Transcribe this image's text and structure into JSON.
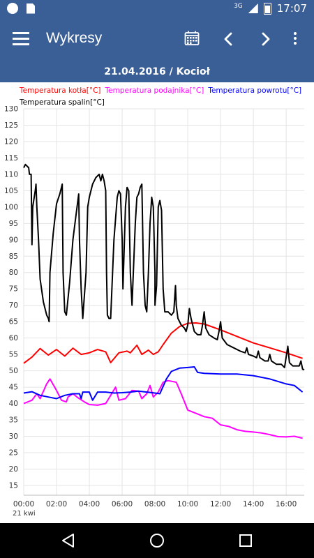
{
  "statusbar": {
    "network": "3G",
    "time": "17:07"
  },
  "toolbar": {
    "title": "Wykresy",
    "icons": [
      "menu-icon",
      "calendar-icon",
      "chevron-left-icon",
      "chevron-right-icon",
      "more-vert-icon"
    ]
  },
  "subtitle": "21.04.2016 / Kocioł",
  "chart_data": {
    "type": "line",
    "title": "",
    "xlabel": "",
    "ylabel": "",
    "x_ticks": [
      "00:00",
      "02:00",
      "04:00",
      "06:00",
      "08:00",
      "10:00",
      "12:00",
      "14:00",
      "16:00"
    ],
    "x_sub_label": "21 kwi",
    "y_ticks": [
      15,
      20,
      25,
      30,
      35,
      40,
      45,
      50,
      55,
      60,
      65,
      70,
      75,
      80,
      85,
      90,
      95,
      100,
      105,
      110,
      115,
      120,
      125,
      130
    ],
    "ylim": [
      12,
      130
    ],
    "xlim": [
      0,
      17.1
    ],
    "grid": true,
    "legend_position": "top",
    "series": [
      {
        "name": "Temperatura kotła[°C]",
        "color": "#ff0000",
        "points": [
          [
            0,
            52.3
          ],
          [
            0.5,
            54.2
          ],
          [
            1,
            56.8
          ],
          [
            1.5,
            54.8
          ],
          [
            2,
            56.5
          ],
          [
            2.5,
            54.5
          ],
          [
            3,
            56.9
          ],
          [
            3.5,
            55
          ],
          [
            4,
            55.5
          ],
          [
            4.5,
            56.5
          ],
          [
            5,
            55.8
          ],
          [
            5.3,
            52.5
          ],
          [
            5.8,
            55.5
          ],
          [
            6.3,
            56
          ],
          [
            6.5,
            55.5
          ],
          [
            6.9,
            57.8
          ],
          [
            7.2,
            55
          ],
          [
            7.6,
            56.3
          ],
          [
            7.9,
            55
          ],
          [
            8.2,
            55.8
          ],
          [
            8.5,
            58
          ],
          [
            9,
            61.5
          ],
          [
            9.5,
            63.5
          ],
          [
            10,
            64.5
          ],
          [
            10.5,
            64.6
          ],
          [
            11,
            64.3
          ],
          [
            12,
            62.5
          ],
          [
            13,
            60.5
          ],
          [
            14,
            58.5
          ],
          [
            15,
            57
          ],
          [
            16,
            55.5
          ],
          [
            17,
            53.8
          ]
        ]
      },
      {
        "name": "Temperatura podajnika[°C]",
        "color": "#ff00ff",
        "points": [
          [
            0,
            40
          ],
          [
            0.5,
            41
          ],
          [
            0.8,
            43
          ],
          [
            1,
            41.5
          ],
          [
            1.4,
            46
          ],
          [
            1.6,
            47.5
          ],
          [
            2,
            44
          ],
          [
            2.3,
            41
          ],
          [
            2.6,
            40.5
          ],
          [
            2.7,
            42
          ],
          [
            3,
            43
          ],
          [
            3.3,
            41.8
          ],
          [
            3.7,
            40.5
          ],
          [
            4,
            39.7
          ],
          [
            4.5,
            39.5
          ],
          [
            5,
            40
          ],
          [
            5.3,
            42.5
          ],
          [
            5.6,
            45
          ],
          [
            5.8,
            41
          ],
          [
            6.2,
            41.5
          ],
          [
            6.6,
            44
          ],
          [
            7,
            43.8
          ],
          [
            7.2,
            41.5
          ],
          [
            7.5,
            43
          ],
          [
            7.7,
            45.5
          ],
          [
            7.9,
            42
          ],
          [
            8.2,
            43.5
          ],
          [
            8.5,
            46.5
          ],
          [
            8.8,
            47
          ],
          [
            9.3,
            46.5
          ],
          [
            9.6,
            43
          ],
          [
            10,
            38
          ],
          [
            10.5,
            37
          ],
          [
            11,
            36
          ],
          [
            11.5,
            35.5
          ],
          [
            12,
            33.5
          ],
          [
            12.5,
            33
          ],
          [
            13,
            32
          ],
          [
            13.5,
            31.5
          ],
          [
            14,
            31.3
          ],
          [
            14.5,
            31
          ],
          [
            15,
            30.5
          ],
          [
            15.5,
            29.9
          ],
          [
            16,
            29.8
          ],
          [
            16.5,
            30
          ],
          [
            17,
            29.4
          ]
        ]
      },
      {
        "name": "Temperatura powrotu[°C]",
        "color": "#0000ff",
        "points": [
          [
            0,
            43.2
          ],
          [
            0.5,
            43.6
          ],
          [
            1,
            42.5
          ],
          [
            1.5,
            42
          ],
          [
            2,
            41.5
          ],
          [
            2.5,
            42.5
          ],
          [
            3,
            43
          ],
          [
            3.4,
            43
          ],
          [
            3.5,
            41.5
          ],
          [
            3.6,
            43.5
          ],
          [
            4,
            43.5
          ],
          [
            4.2,
            41
          ],
          [
            4.5,
            43.5
          ],
          [
            5,
            43.5
          ],
          [
            5.5,
            43.2
          ],
          [
            6,
            43.3
          ],
          [
            6.5,
            43.5
          ],
          [
            7,
            43.8
          ],
          [
            7.5,
            43.5
          ],
          [
            8,
            43.2
          ],
          [
            8.3,
            43
          ],
          [
            8.7,
            47.5
          ],
          [
            9,
            49.8
          ],
          [
            9.5,
            50.8
          ],
          [
            10,
            51
          ],
          [
            10.4,
            51.2
          ],
          [
            10.6,
            49.5
          ],
          [
            11,
            49.2
          ],
          [
            12,
            49
          ],
          [
            13,
            49
          ],
          [
            14,
            48.5
          ],
          [
            15,
            47.5
          ],
          [
            16,
            46
          ],
          [
            16.5,
            45.5
          ],
          [
            17,
            43.5
          ]
        ]
      },
      {
        "name": "Temperatura spalin[°C]",
        "color": "#000000",
        "points": [
          [
            0,
            112
          ],
          [
            0.1,
            113
          ],
          [
            0.3,
            112
          ],
          [
            0.35,
            110
          ],
          [
            0.45,
            110
          ],
          [
            0.5,
            88.5
          ],
          [
            0.55,
            100
          ],
          [
            0.7,
            105
          ],
          [
            0.75,
            107
          ],
          [
            0.8,
            100
          ],
          [
            0.9,
            90
          ],
          [
            1,
            78
          ],
          [
            1.2,
            71
          ],
          [
            1.4,
            67
          ],
          [
            1.5,
            66
          ],
          [
            1.55,
            65
          ],
          [
            1.6,
            80
          ],
          [
            1.8,
            92
          ],
          [
            2,
            101
          ],
          [
            2.2,
            104
          ],
          [
            2.3,
            106
          ],
          [
            2.35,
            107
          ],
          [
            2.4,
            80
          ],
          [
            2.5,
            68
          ],
          [
            2.6,
            67
          ],
          [
            2.8,
            77
          ],
          [
            3,
            90
          ],
          [
            3.2,
            98
          ],
          [
            3.35,
            104
          ],
          [
            3.4,
            90
          ],
          [
            3.5,
            75
          ],
          [
            3.6,
            66
          ],
          [
            3.8,
            80
          ],
          [
            3.9,
            100
          ],
          [
            4,
            103
          ],
          [
            4.2,
            107
          ],
          [
            4.4,
            109
          ],
          [
            4.6,
            110
          ],
          [
            4.7,
            108
          ],
          [
            4.8,
            110
          ],
          [
            4.9,
            108
          ],
          [
            5,
            105
          ],
          [
            5.05,
            80
          ],
          [
            5.1,
            67
          ],
          [
            5.2,
            66
          ],
          [
            5.3,
            66
          ],
          [
            5.5,
            90
          ],
          [
            5.7,
            103
          ],
          [
            5.8,
            105
          ],
          [
            5.9,
            104
          ],
          [
            6,
            90
          ],
          [
            6.05,
            75
          ],
          [
            6.2,
            100
          ],
          [
            6.3,
            106
          ],
          [
            6.4,
            105
          ],
          [
            6.5,
            80
          ],
          [
            6.6,
            70
          ],
          [
            6.8,
            95
          ],
          [
            6.9,
            103
          ],
          [
            7,
            104
          ],
          [
            7.1,
            106
          ],
          [
            7.2,
            107
          ],
          [
            7.3,
            80
          ],
          [
            7.4,
            70
          ],
          [
            7.5,
            68
          ],
          [
            7.6,
            80
          ],
          [
            7.7,
            95
          ],
          [
            7.8,
            103
          ],
          [
            7.9,
            100
          ],
          [
            8,
            80
          ],
          [
            8,
            70
          ],
          [
            8.1,
            76
          ],
          [
            8.2,
            100
          ],
          [
            8.3,
            102
          ],
          [
            8.4,
            99
          ],
          [
            8.5,
            75
          ],
          [
            8.6,
            68
          ],
          [
            8.8,
            68
          ],
          [
            9,
            67
          ],
          [
            9.15,
            68
          ],
          [
            9.25,
            76
          ],
          [
            9.3,
            70
          ],
          [
            9.4,
            66
          ],
          [
            9.6,
            64
          ],
          [
            9.8,
            63
          ],
          [
            9.9,
            62
          ],
          [
            10,
            64
          ],
          [
            10.1,
            69
          ],
          [
            10.2,
            66
          ],
          [
            10.4,
            62
          ],
          [
            10.6,
            61
          ],
          [
            10.8,
            61
          ],
          [
            10.9,
            64
          ],
          [
            11,
            68
          ],
          [
            11.1,
            63
          ],
          [
            11.3,
            61
          ],
          [
            11.6,
            60
          ],
          [
            11.8,
            59.5
          ],
          [
            11.9,
            62
          ],
          [
            12,
            65
          ],
          [
            12.1,
            60
          ],
          [
            12.4,
            58
          ],
          [
            12.8,
            57
          ],
          [
            13.2,
            56
          ],
          [
            13.5,
            55.5
          ],
          [
            13.6,
            57
          ],
          [
            13.7,
            55
          ],
          [
            14,
            54.5
          ],
          [
            14.2,
            54
          ],
          [
            14.3,
            56
          ],
          [
            14.4,
            54
          ],
          [
            14.7,
            53
          ],
          [
            14.9,
            53
          ],
          [
            15,
            55
          ],
          [
            15.1,
            53
          ],
          [
            15.4,
            52
          ],
          [
            15.7,
            52
          ],
          [
            15.9,
            51
          ],
          [
            16.1,
            57.5
          ],
          [
            16.2,
            52.5
          ],
          [
            16.4,
            51.5
          ],
          [
            16.7,
            51.5
          ],
          [
            16.8,
            51.5
          ],
          [
            16.9,
            53
          ],
          [
            17,
            50.5
          ],
          [
            17.1,
            50.3
          ]
        ]
      }
    ]
  }
}
